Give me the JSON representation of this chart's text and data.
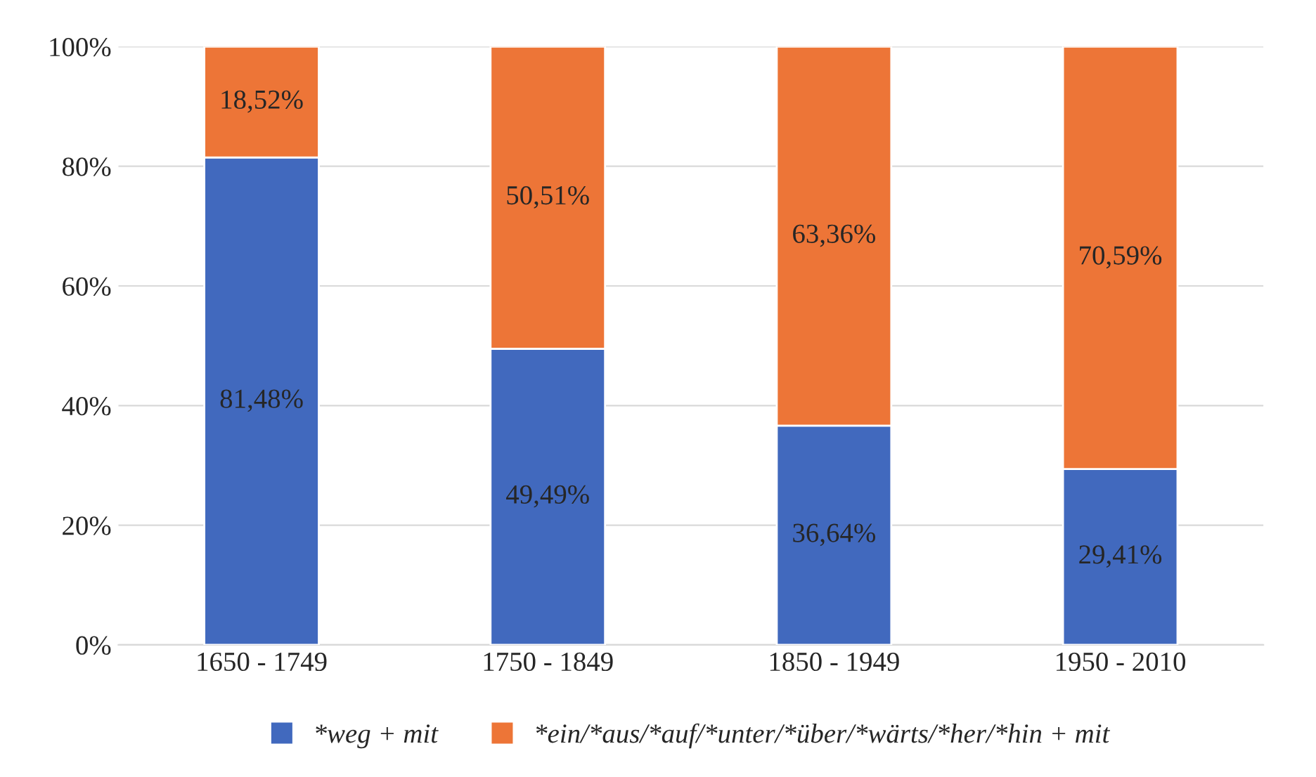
{
  "chart_data": {
    "type": "bar",
    "stacked": true,
    "categories": [
      "1650 - 1749",
      "1750 - 1849",
      "1850 - 1949",
      "1950 - 2010"
    ],
    "series": [
      {
        "name": "*weg + mit",
        "color": "#4169be",
        "values": [
          81.48,
          49.49,
          36.64,
          29.41
        ],
        "value_labels": [
          "81,48%",
          "49,49%",
          "36,64%",
          "29,41%"
        ]
      },
      {
        "name": "*ein/*aus/*auf/*unter/*über/*wärts/*her/*hin + mit",
        "color": "#ed7537",
        "values": [
          18.52,
          50.51,
          63.36,
          70.59
        ],
        "value_labels": [
          "18,52%",
          "50,51%",
          "63,36%",
          "70,59%"
        ]
      }
    ],
    "ylim": [
      0,
      100
    ],
    "yticks": [
      {
        "value": 0,
        "label": "0%"
      },
      {
        "value": 20,
        "label": "20%"
      },
      {
        "value": 40,
        "label": "40%"
      },
      {
        "value": 60,
        "label": "60%"
      },
      {
        "value": 80,
        "label": "80%"
      },
      {
        "value": 100,
        "label": "100%"
      }
    ],
    "grid": "y",
    "legend": "bottom"
  }
}
